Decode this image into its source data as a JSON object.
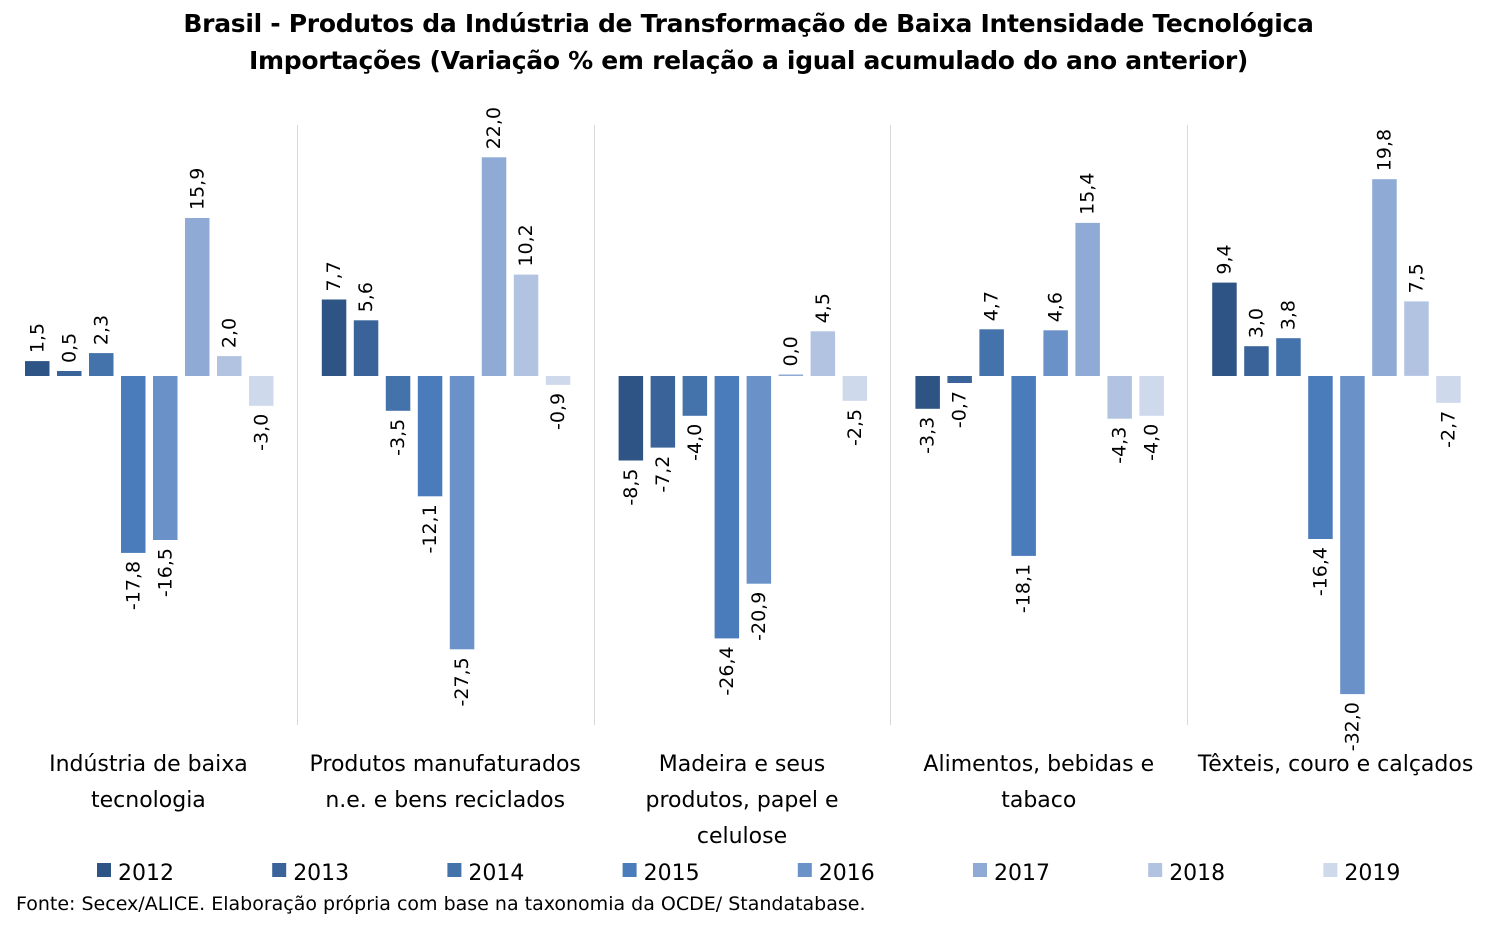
{
  "chart_data": {
    "type": "bar",
    "title": "Brasil - Produtos da Indústria de Transformação de Baixa Intensidade Tecnológica",
    "subtitle": "Importações (Variação % em relação a igual acumulado do ano anterior)",
    "categories": [
      [
        "Indústria de baixa",
        "tecnologia"
      ],
      [
        "Produtos manufaturados",
        "n.e. e bens reciclados"
      ],
      [
        "Madeira e seus",
        "produtos, papel e",
        "celulose"
      ],
      [
        "Alimentos, bebidas e",
        "tabaco"
      ],
      [
        "Têxteis, couro e calçados"
      ]
    ],
    "series": [
      {
        "name": "2012",
        "color": "#2e5485",
        "values": [
          1.5,
          7.7,
          -8.5,
          -3.3,
          9.4
        ]
      },
      {
        "name": "2013",
        "color": "#3a6399",
        "values": [
          0.5,
          5.6,
          -7.2,
          -0.7,
          3.0
        ]
      },
      {
        "name": "2014",
        "color": "#4472ab",
        "values": [
          2.3,
          -3.5,
          -4.0,
          4.7,
          3.8
        ]
      },
      {
        "name": "2015",
        "color": "#4a7cbc",
        "values": [
          -17.8,
          -12.1,
          -26.4,
          -18.1,
          -16.4
        ]
      },
      {
        "name": "2016",
        "color": "#6a91c8",
        "values": [
          -16.5,
          -27.5,
          -20.9,
          4.6,
          -32.0
        ]
      },
      {
        "name": "2017",
        "color": "#8faad5",
        "values": [
          15.9,
          22.0,
          0.0,
          15.4,
          19.8
        ]
      },
      {
        "name": "2018",
        "color": "#b2c3e2",
        "values": [
          2.0,
          10.2,
          4.5,
          -4.3,
          7.5
        ]
      },
      {
        "name": "2019",
        "color": "#cfd9ec",
        "values": [
          -3.0,
          -0.9,
          -2.5,
          -4.0,
          -2.7
        ]
      }
    ],
    "ylim": [
      -35,
      25
    ],
    "gridlines": false,
    "legend": "bottom",
    "data_labels": true,
    "decimal_separator": ","
  },
  "source_note": "Fonte: Secex/ALICE. Elaboração própria com base na taxonomia da OCDE/ Standatabase."
}
